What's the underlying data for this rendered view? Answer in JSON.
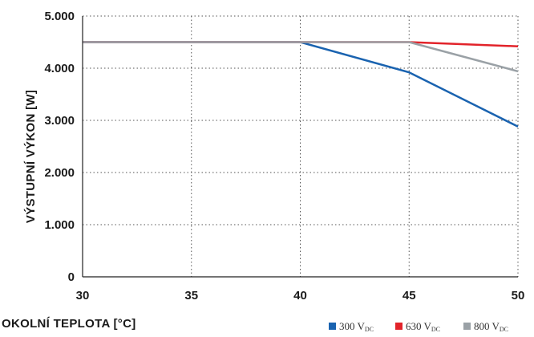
{
  "chart_data": {
    "type": "line",
    "xlabel": "OKOLNÍ TEPLOTA [°C]",
    "ylabel": "VÝSTUPNÍ VÝKON [W]",
    "xlim": [
      30,
      50
    ],
    "ylim": [
      0,
      5000
    ],
    "x_ticks": [
      30,
      35,
      40,
      45,
      50
    ],
    "x_tick_labels": [
      "30",
      "35",
      "40",
      "45",
      "50"
    ],
    "y_ticks": [
      0,
      1000,
      2000,
      3000,
      4000,
      5000
    ],
    "y_tick_labels": [
      "0",
      "1.000",
      "2.000",
      "3.000",
      "4.000",
      "5.000"
    ],
    "grid": true,
    "legend_position": "bottom-right",
    "series": [
      {
        "name": "300 V",
        "name_sub": "DC",
        "color": "#1a63b0",
        "points": [
          [
            30,
            4500
          ],
          [
            40,
            4500
          ],
          [
            45,
            3920
          ],
          [
            50,
            2880
          ]
        ]
      },
      {
        "name": "630 V",
        "name_sub": "DC",
        "color": "#e2232a",
        "points": [
          [
            30,
            4500
          ],
          [
            45,
            4500
          ],
          [
            50,
            4420
          ]
        ]
      },
      {
        "name": "800 V",
        "name_sub": "DC",
        "color": "#9aa1a6",
        "points": [
          [
            30,
            4500
          ],
          [
            45,
            4500
          ],
          [
            50,
            3940
          ]
        ]
      }
    ]
  }
}
